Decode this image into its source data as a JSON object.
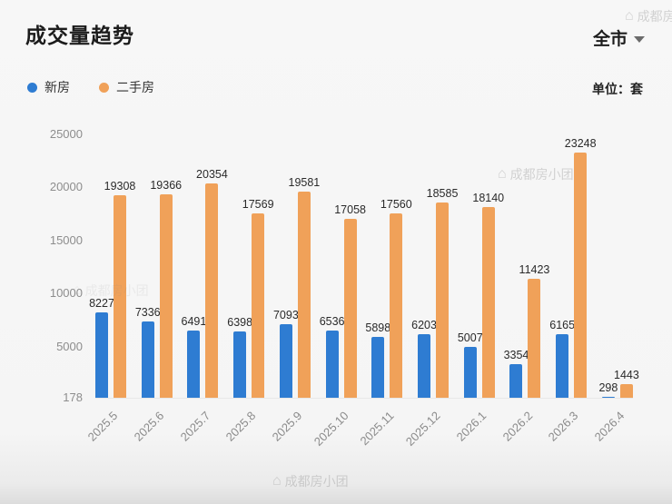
{
  "header": {
    "title": "成交量趋势",
    "scope": "全市",
    "unit_label": "单位：套"
  },
  "legend": [
    {
      "label": "新房",
      "color": "#2e7cd2"
    },
    {
      "label": "二手房",
      "color": "#f0a159"
    }
  ],
  "watermark": {
    "text": "成都房小团",
    "icon": "house-icon"
  },
  "chart_data": {
    "type": "bar",
    "title": "成交量趋势",
    "categories": [
      "2025.5",
      "2025.6",
      "2025.7",
      "2025.8",
      "2025.9",
      "2025.10",
      "2025.11",
      "2025.12",
      "2026.1",
      "2026.2",
      "2026.3",
      "2026.4"
    ],
    "series": [
      {
        "name": "新房",
        "key": "new-homes",
        "color": "#2e7cd2",
        "values": [
          8227,
          7336,
          6491,
          6398,
          7093,
          6536,
          5898,
          6203,
          5007,
          3354,
          6165,
          298
        ]
      },
      {
        "name": "二手房",
        "key": "resale-homes",
        "color": "#f0a159",
        "values": [
          19308,
          19366,
          20354,
          17569,
          19581,
          17058,
          17560,
          18585,
          18140,
          11423,
          23248,
          1443
        ]
      }
    ],
    "xlabel": "",
    "ylabel": "",
    "yticks": [
      178,
      5000,
      10000,
      15000,
      20000,
      25000
    ],
    "ylim": [
      178,
      25000
    ],
    "grid": false,
    "legend_position": "top-left",
    "value_labels": true
  }
}
